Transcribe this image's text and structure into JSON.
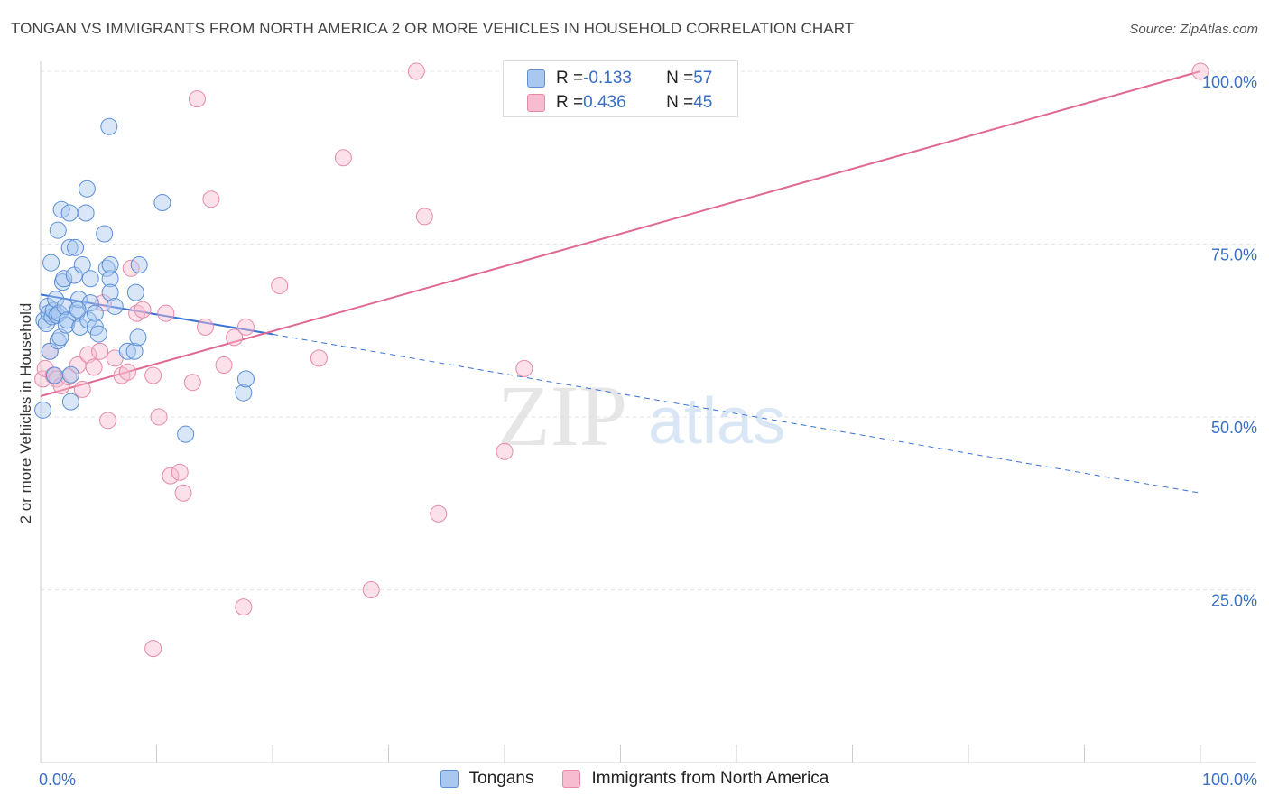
{
  "chart_data": {
    "type": "scatter",
    "title": "TONGAN VS IMMIGRANTS FROM NORTH AMERICA 2 OR MORE VEHICLES IN HOUSEHOLD CORRELATION CHART",
    "source_prefix": "Source: ",
    "source_name": "ZipAtlas.com",
    "xlabel": "",
    "ylabel": "2 or more Vehicles in Household",
    "xlim": [
      0,
      100
    ],
    "ylim": [
      0,
      100
    ],
    "x_tick_labels": [
      "0.0%",
      "100.0%"
    ],
    "y_tick_labels": [
      {
        "value": 25,
        "label": "25.0%"
      },
      {
        "value": 50,
        "label": "50.0%"
      },
      {
        "value": 75,
        "label": "75.0%"
      },
      {
        "value": 100,
        "label": "100.0%"
      }
    ],
    "watermark_zip": "ZIP",
    "watermark_atlas": "atlas",
    "legend": {
      "r_label": "R = ",
      "n_label": "N = "
    },
    "colors": {
      "tongans_fill": "#a8c8f0",
      "tongans_stroke": "#5b8fd6",
      "tongans_line": "#3a72d4",
      "immigrants_fill": "#f8bcd0",
      "immigrants_stroke": "#e58aaa",
      "immigrants_line": "#e0698f",
      "grid": "#e6e6e6",
      "axis_text": "#3a6fc4"
    },
    "series": [
      {
        "name": "Tongans",
        "r": "-0.133",
        "n": "57",
        "trend": {
          "x0": 0,
          "y0": 67.7,
          "x1": 100,
          "y1": 39.0,
          "solid_until": 20
        },
        "points": [
          [
            0.2,
            51
          ],
          [
            0.3,
            64
          ],
          [
            0.5,
            63.5
          ],
          [
            0.6,
            66
          ],
          [
            0.7,
            65
          ],
          [
            0.8,
            59.5
          ],
          [
            0.9,
            72.3
          ],
          [
            1.0,
            64.5
          ],
          [
            1.1,
            65.4
          ],
          [
            1.2,
            56
          ],
          [
            1.3,
            67
          ],
          [
            1.4,
            64.7
          ],
          [
            1.5,
            61
          ],
          [
            1.5,
            77
          ],
          [
            1.6,
            65
          ],
          [
            1.7,
            61.5
          ],
          [
            1.8,
            80
          ],
          [
            1.9,
            69.5
          ],
          [
            2.0,
            70
          ],
          [
            2.1,
            66
          ],
          [
            2.2,
            63.3
          ],
          [
            2.3,
            64
          ],
          [
            2.5,
            79.5
          ],
          [
            2.5,
            74.5
          ],
          [
            2.6,
            52.2
          ],
          [
            2.6,
            56.1
          ],
          [
            2.9,
            70.5
          ],
          [
            3.0,
            74.5
          ],
          [
            3.1,
            65
          ],
          [
            3.3,
            67
          ],
          [
            3.4,
            63
          ],
          [
            3.6,
            72
          ],
          [
            3.9,
            79.5
          ],
          [
            4.0,
            83
          ],
          [
            4.1,
            64
          ],
          [
            4.3,
            70
          ],
          [
            4.3,
            66.5
          ],
          [
            4.7,
            65
          ],
          [
            4.7,
            63
          ],
          [
            5.0,
            62
          ],
          [
            5.5,
            76.5
          ],
          [
            5.7,
            71.5
          ],
          [
            5.9,
            92
          ],
          [
            6.0,
            70
          ],
          [
            6.0,
            72
          ],
          [
            6.0,
            68
          ],
          [
            7.5,
            59.5
          ],
          [
            8.1,
            59.5
          ],
          [
            8.2,
            68
          ],
          [
            8.4,
            61.5
          ],
          [
            8.5,
            72
          ],
          [
            10.5,
            81
          ],
          [
            12.5,
            47.5
          ],
          [
            17.5,
            53.5
          ],
          [
            17.7,
            55.5
          ],
          [
            6.4,
            66
          ],
          [
            3.2,
            65.5
          ]
        ]
      },
      {
        "name": "Immigrants from North America",
        "r": "0.436",
        "n": "45",
        "trend": {
          "x0": 0,
          "y0": 53,
          "x1": 100,
          "y1": 100
        },
        "points": [
          [
            0.2,
            55.5
          ],
          [
            0.4,
            57
          ],
          [
            0.8,
            59.5
          ],
          [
            1.1,
            56
          ],
          [
            1.4,
            55.5
          ],
          [
            1.8,
            54.5
          ],
          [
            2.4,
            55.8
          ],
          [
            3.2,
            57.5
          ],
          [
            3.6,
            54
          ],
          [
            4.1,
            59
          ],
          [
            4.6,
            57.2
          ],
          [
            5.1,
            59.5
          ],
          [
            5.4,
            66.5
          ],
          [
            5.8,
            49.5
          ],
          [
            6.4,
            58.5
          ],
          [
            7.0,
            56
          ],
          [
            7.5,
            56.5
          ],
          [
            7.8,
            71.5
          ],
          [
            8.3,
            65
          ],
          [
            8.8,
            65.5
          ],
          [
            9.7,
            16.5
          ],
          [
            9.7,
            56
          ],
          [
            10.2,
            50
          ],
          [
            10.8,
            65
          ],
          [
            11.2,
            41.5
          ],
          [
            12.0,
            42
          ],
          [
            12.3,
            39
          ],
          [
            13.1,
            55
          ],
          [
            13.5,
            96
          ],
          [
            14.2,
            63
          ],
          [
            14.7,
            81.5
          ],
          [
            15.8,
            57.5
          ],
          [
            16.7,
            61.5
          ],
          [
            17.5,
            22.5
          ],
          [
            17.7,
            63
          ],
          [
            20.6,
            69
          ],
          [
            24.0,
            58.5
          ],
          [
            26.1,
            87.5
          ],
          [
            28.5,
            25
          ],
          [
            32.4,
            100
          ],
          [
            33.1,
            79
          ],
          [
            34.3,
            36
          ],
          [
            40.0,
            45
          ],
          [
            41.7,
            57
          ],
          [
            100.0,
            100
          ]
        ]
      }
    ]
  }
}
